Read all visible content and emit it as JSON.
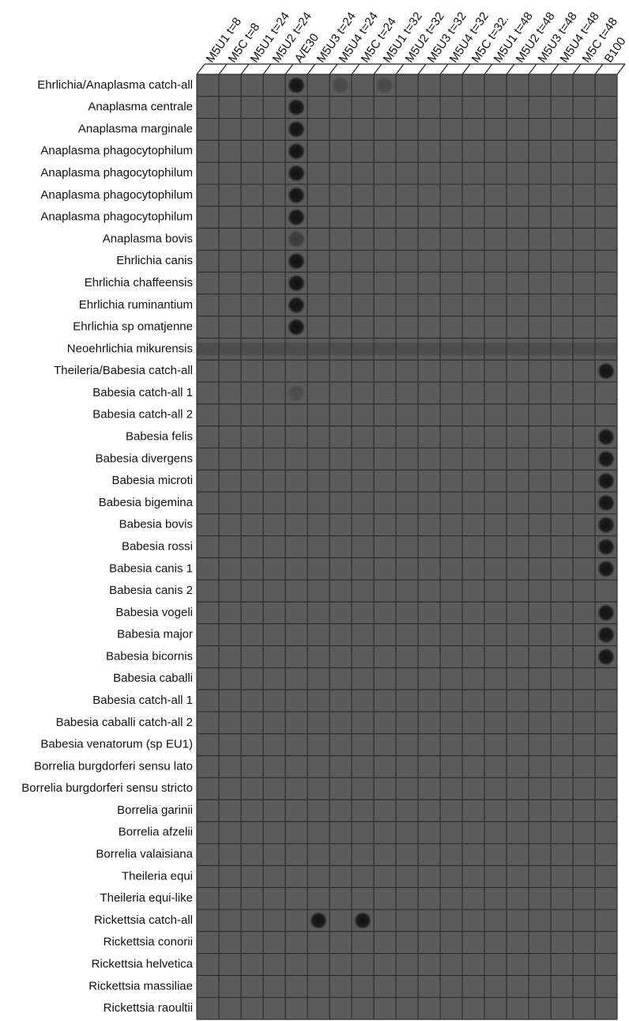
{
  "columns": [
    "M5U1 t=8",
    "M5C t=8",
    "M5U1 t=24",
    "M5U2 t=24",
    "A/E30",
    "M5U3 t=24",
    "M5U4 t=24",
    "M5C t=24",
    "M5U1 t=32",
    "M5U2 t=32",
    "M5U3 t=32",
    "M5U4 t=32",
    "M5C t=32.",
    "M5U1 t=48",
    "M5U2 t=48",
    "M5U3 t=48",
    "M5U4 t=48",
    "M5C t=48",
    "B100"
  ],
  "rows": [
    "Ehrlichia/Anaplasma catch-all",
    "Anaplasma centrale",
    "Anaplasma marginale",
    "Anaplasma phagocytophilum",
    "Anaplasma phagocytophilum",
    "Anaplasma phagocytophilum",
    "Anaplasma phagocytophilum",
    "Anaplasma bovis",
    "Ehrlichia canis",
    "Ehrlichia chaffeensis",
    "Ehrlichia ruminantium",
    "Ehrlichia sp omatjenne",
    "Neoehrlichia mikurensis",
    "Theileria/Babesia catch-all",
    "Babesia catch-all 1",
    "Babesia catch-all 2",
    "Babesia felis",
    "Babesia divergens",
    "Babesia microti",
    "Babesia bigemina",
    "Babesia bovis",
    "Babesia rossi",
    "Babesia canis 1",
    "Babesia canis 2",
    "Babesia vogeli",
    "Babesia major",
    "Babesia bicornis",
    "Babesia caballi",
    "Babesia catch-all 1",
    "Babesia caballi catch-all 2",
    "Babesia venatorum (sp EU1)",
    "Borrelia burgdorferi sensu lato",
    "Borrelia burgdorferi sensu stricto",
    "Borrelia garinii",
    "Borrelia afzelii",
    "Borrelia valaisiana",
    "Theileria equi",
    "Theileria equi-like",
    "Rickettsia catch-all",
    "Rickettsia conorii",
    "Rickettsia helvetica",
    "Rickettsia massiliae",
    "Rickettsia raoultii"
  ]
}
